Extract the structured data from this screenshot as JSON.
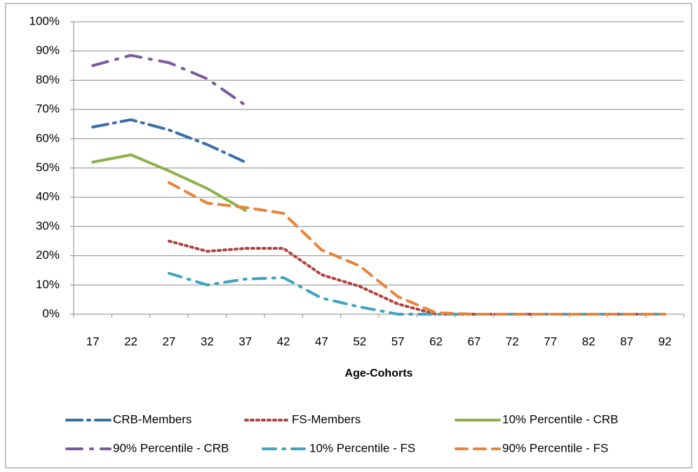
{
  "chart_data": {
    "type": "line",
    "x_label": "Age-Cohorts",
    "categories": [
      17,
      22,
      27,
      32,
      37,
      42,
      47,
      52,
      57,
      62,
      67,
      72,
      77,
      82,
      87,
      92
    ],
    "ylim": [
      0,
      100
    ],
    "yticks": [
      {
        "value": 0,
        "label": "0%"
      },
      {
        "value": 10,
        "label": "10%"
      },
      {
        "value": 20,
        "label": "20%"
      },
      {
        "value": 30,
        "label": "30%"
      },
      {
        "value": 40,
        "label": "40%"
      },
      {
        "value": 50,
        "label": "50%"
      },
      {
        "value": 60,
        "label": "60%"
      },
      {
        "value": 70,
        "label": "70%"
      },
      {
        "value": 80,
        "label": "80%"
      },
      {
        "value": 90,
        "label": "90%"
      },
      {
        "value": 100,
        "label": "100%"
      }
    ],
    "grid": true,
    "legend": "bottom",
    "series": [
      {
        "name": "CRB-Members",
        "color": "#3a6ea8",
        "values": [
          64,
          66.5,
          63,
          58,
          52,
          null,
          null,
          null,
          null,
          null,
          null,
          null,
          null,
          null,
          null,
          null
        ]
      },
      {
        "name": "FS-Members",
        "color": "#b0413e",
        "values": [
          null,
          null,
          25,
          21.5,
          22.5,
          22.5,
          13.5,
          9.5,
          3.5,
          0,
          0,
          0,
          0,
          0,
          0,
          0
        ]
      },
      {
        "name": "10% Percentile - CRB",
        "color": "#8db04c",
        "values": [
          52,
          54.5,
          49,
          43,
          35.5,
          null,
          null,
          null,
          null,
          null,
          null,
          null,
          null,
          null,
          null,
          null
        ]
      },
      {
        "name": "90% Percentile - CRB",
        "color": "#7a5a9e",
        "values": [
          85,
          88.5,
          86,
          80.5,
          71.5,
          null,
          null,
          null,
          null,
          null,
          null,
          null,
          null,
          null,
          null,
          null
        ]
      },
      {
        "name": "10% Percentile - FS",
        "color": "#3fa4bf",
        "values": [
          null,
          null,
          14,
          10,
          12,
          12.5,
          5.5,
          2.5,
          0,
          0,
          0,
          0,
          0,
          0,
          0,
          0
        ]
      },
      {
        "name": "90% Percentile - FS",
        "color": "#e8833a",
        "values": [
          null,
          null,
          45,
          38,
          36.5,
          34.5,
          22,
          16.5,
          6,
          0.5,
          0,
          0,
          0,
          0,
          0,
          0
        ]
      }
    ]
  }
}
